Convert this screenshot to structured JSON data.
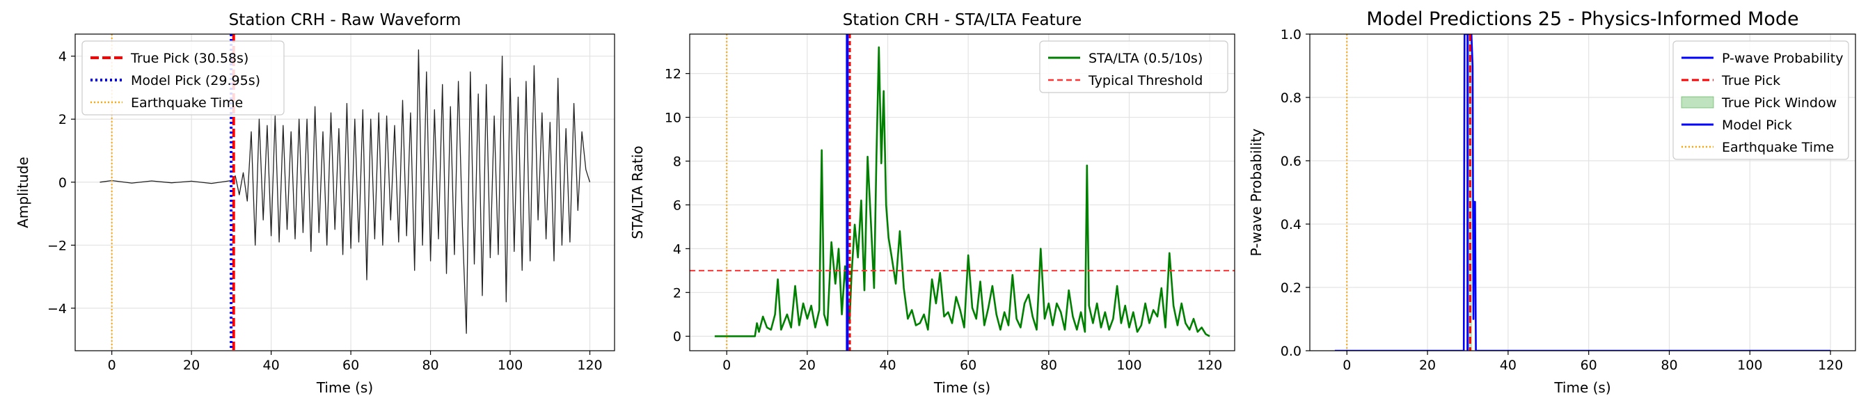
{
  "chart_data": [
    {
      "type": "line",
      "title": "Station CRH - Raw Waveform",
      "xlabel": "Time (s)",
      "ylabel": "Amplitude",
      "xlim": [
        -9.2,
        126.2
      ],
      "ylim": [
        -5.35,
        4.7
      ],
      "xticks": [
        0,
        20,
        40,
        60,
        80,
        100,
        120
      ],
      "xticklabels": [
        "0",
        "20",
        "40",
        "60",
        "80",
        "100",
        "120"
      ],
      "yticks": [
        -4,
        -2,
        0,
        2,
        4
      ],
      "yticklabels": [
        "−4",
        "−2",
        "0",
        "2",
        "4"
      ],
      "grid": true,
      "legend_position": "top-left",
      "series": [
        {
          "name": "",
          "role": "waveform",
          "color": "#222222",
          "x": [
            -3,
            0,
            5,
            10,
            15,
            20,
            25,
            30,
            31,
            32,
            33,
            34,
            35,
            36,
            37,
            38,
            39,
            40,
            41,
            42,
            43,
            44,
            45,
            46,
            47,
            48,
            49,
            50,
            51,
            52,
            53,
            54,
            55,
            56,
            57,
            58,
            59,
            60,
            61,
            62,
            63,
            64,
            65,
            66,
            67,
            68,
            69,
            70,
            71,
            72,
            73,
            74,
            75,
            76,
            77,
            78,
            79,
            80,
            81,
            82,
            83,
            84,
            85,
            86,
            87,
            88,
            89,
            90,
            91,
            92,
            93,
            94,
            95,
            96,
            97,
            98,
            99,
            100,
            101,
            102,
            103,
            104,
            105,
            106,
            107,
            108,
            109,
            110,
            111,
            112,
            113,
            114,
            115,
            116,
            117,
            118,
            119,
            120
          ],
          "y": [
            0.0,
            0.05,
            -0.03,
            0.04,
            -0.02,
            0.03,
            -0.04,
            0.05,
            0.2,
            -0.4,
            0.3,
            -0.6,
            1.6,
            -2.0,
            2.0,
            -1.2,
            1.8,
            -1.7,
            2.1,
            -1.9,
            1.8,
            -1.5,
            1.6,
            -1.8,
            2.0,
            -1.6,
            2.0,
            -2.2,
            2.4,
            -1.6,
            1.6,
            -2.0,
            2.2,
            -1.5,
            1.7,
            -2.3,
            2.5,
            -2.1,
            2.0,
            -1.9,
            2.3,
            -3.1,
            2.0,
            -1.8,
            2.2,
            -2.0,
            2.1,
            -1.2,
            1.8,
            -1.9,
            2.6,
            -1.7,
            2.2,
            -2.8,
            4.2,
            -2.0,
            3.5,
            -2.5,
            2.3,
            -1.8,
            3.1,
            -2.9,
            2.4,
            -2.3,
            3.2,
            -1.4,
            -4.8,
            3.5,
            -2.6,
            2.8,
            -3.6,
            3.1,
            -2.4,
            2.1,
            -2.3,
            4.0,
            -3.8,
            3.3,
            -2.2,
            2.7,
            -2.8,
            3.2,
            -2.5,
            3.7,
            -1.2,
            2.2,
            -1.8,
            1.9,
            -2.5,
            3.3,
            -2.0,
            1.7,
            -1.9,
            2.5,
            -0.9,
            1.6,
            0.4,
            0.0
          ]
        },
        {
          "name": "True Pick (30.58s)",
          "role": "vline",
          "x": 30.58,
          "color": "#ff0000",
          "dash": "12 5",
          "width": 4
        },
        {
          "name": "Model Pick (29.95s)",
          "role": "vline",
          "x": 29.95,
          "color": "#0000ff",
          "dash": "3 4",
          "width": 4
        },
        {
          "name": "Earthquake Time",
          "role": "vline",
          "x": 0,
          "color": "#ffa500",
          "dash": "2 3",
          "width": 2
        }
      ]
    },
    {
      "type": "line",
      "title": "Station CRH - STA/LTA Feature",
      "xlabel": "Time (s)",
      "ylabel": "STA/LTA Ratio",
      "xlim": [
        -9.2,
        126.2
      ],
      "ylim": [
        -0.66,
        13.8
      ],
      "xticks": [
        0,
        20,
        40,
        60,
        80,
        100,
        120
      ],
      "xticklabels": [
        "0",
        "20",
        "40",
        "60",
        "80",
        "100",
        "120"
      ],
      "yticks": [
        0,
        2,
        4,
        6,
        8,
        10,
        12
      ],
      "yticklabels": [
        "0",
        "2",
        "4",
        "6",
        "8",
        "10",
        "12"
      ],
      "grid": true,
      "legend_position": "top-right",
      "series": [
        {
          "name": "STA/LTA (0.5/10s)",
          "role": "line",
          "color": "#008000",
          "x": [
            -3,
            7,
            7.5,
            8,
            9,
            10,
            11,
            12,
            12.7,
            13.5,
            15,
            16,
            17,
            18,
            19,
            20,
            21,
            22,
            23,
            23.6,
            24.2,
            25,
            26,
            27,
            27.8,
            28.6,
            29.4,
            30.5,
            31,
            31.8,
            32.6,
            33.4,
            34.2,
            35,
            35.8,
            36.6,
            37.2,
            37.8,
            38.4,
            39,
            39.6,
            40.2,
            41,
            42,
            43,
            44,
            45,
            46,
            47,
            48,
            49,
            50,
            51,
            52,
            53,
            54,
            55,
            56,
            57,
            58,
            59,
            60,
            61,
            62,
            63,
            64,
            65,
            66,
            67,
            68,
            69,
            70,
            71,
            72,
            73,
            74,
            75,
            76,
            77,
            78,
            79,
            80,
            81,
            82,
            83,
            84,
            85,
            86,
            87,
            88,
            89,
            89.5,
            90,
            91,
            92,
            93,
            94,
            95,
            96,
            97,
            98,
            99,
            100,
            101,
            102,
            103,
            104,
            105,
            106,
            107,
            108,
            109,
            110,
            111,
            112,
            113,
            114,
            115,
            116,
            117,
            118,
            119,
            120
          ],
          "y": [
            0.0,
            0.0,
            0.6,
            0.2,
            0.9,
            0.4,
            0.3,
            1.0,
            2.6,
            0.3,
            1.0,
            0.4,
            2.3,
            0.5,
            1.5,
            0.8,
            1.4,
            0.4,
            1.2,
            8.5,
            1.0,
            0.5,
            4.3,
            2.4,
            4.0,
            1.0,
            3.2,
            0.6,
            2.8,
            5.1,
            3.6,
            6.2,
            2.1,
            8.2,
            5.3,
            2.2,
            8.2,
            13.2,
            7.9,
            11.2,
            6.0,
            4.5,
            3.6,
            2.4,
            4.8,
            2.2,
            0.8,
            1.2,
            0.5,
            0.6,
            1.0,
            0.3,
            2.6,
            1.5,
            2.9,
            0.9,
            1.1,
            0.6,
            1.8,
            1.2,
            0.4,
            3.7,
            1.3,
            0.8,
            2.5,
            0.5,
            1.3,
            2.3,
            1.0,
            0.3,
            1.1,
            0.5,
            2.8,
            0.8,
            0.4,
            1.5,
            1.9,
            0.9,
            0.3,
            4.0,
            0.8,
            1.5,
            0.5,
            1.5,
            1.1,
            0.3,
            2.1,
            0.9,
            0.3,
            1.1,
            0.2,
            7.8,
            1.4,
            0.6,
            1.5,
            0.4,
            1.1,
            0.3,
            0.8,
            2.3,
            0.6,
            1.4,
            0.4,
            1.1,
            0.2,
            0.5,
            1.5,
            0.6,
            1.2,
            0.9,
            2.2,
            0.4,
            3.8,
            1.4,
            0.5,
            1.5,
            0.6,
            0.3,
            0.8,
            0.2,
            0.4,
            0.1,
            0.0
          ]
        },
        {
          "name": "Typical Threshold",
          "role": "hline",
          "y": 3,
          "color": "#ff3333",
          "dash": "8 5",
          "width": 2
        },
        {
          "name": "",
          "role": "vline",
          "x": 29.95,
          "color": "#0000ff",
          "dash": "",
          "width": 4
        },
        {
          "name": "",
          "role": "vline",
          "x": 30.58,
          "color": "#ff0000",
          "dash": "6 4",
          "width": 3
        },
        {
          "name": "",
          "role": "vline",
          "x": 0,
          "color": "#ffa500",
          "dash": "2 3",
          "width": 2
        }
      ]
    },
    {
      "type": "line",
      "title": "Model Predictions 25 - Physics-Informed Mode",
      "xlabel": "Time (s)",
      "ylabel": "P-wave Probability",
      "xlim": [
        -9.2,
        126.2
      ],
      "ylim": [
        0.0,
        1.0
      ],
      "xticks": [
        0,
        20,
        40,
        60,
        80,
        100,
        120
      ],
      "xticklabels": [
        "0",
        "20",
        "40",
        "60",
        "80",
        "100",
        "120"
      ],
      "yticks": [
        0.0,
        0.2,
        0.4,
        0.6,
        0.8,
        1.0
      ],
      "yticklabels": [
        "0.0",
        "0.2",
        "0.4",
        "0.6",
        "0.8",
        "1.0"
      ],
      "grid": true,
      "legend_position": "top-right",
      "series": [
        {
          "name": "P-wave Probability",
          "role": "line",
          "color": "#0000ff",
          "x": [
            -3,
            29.0,
            29.2,
            29.5,
            30.0,
            30.5,
            30.9,
            31.2,
            31.4,
            31.6,
            31.8,
            32.0,
            32.2,
            32.4,
            120
          ],
          "y": [
            0.0,
            0.0,
            1.0,
            1.0,
            1.0,
            1.0,
            1.0,
            0.9,
            0.1,
            0.47,
            0.47,
            0.0,
            0.0,
            0.0,
            0.0
          ]
        },
        {
          "name": "True Pick",
          "role": "vline",
          "x": 30.58,
          "color": "#ff0000",
          "dash": "10 5",
          "width": 3
        },
        {
          "name": "True Pick Window",
          "role": "vspan",
          "x0": 30.08,
          "x1": 31.08,
          "color": "#2ca02c",
          "opacity": 0.3
        },
        {
          "name": "Model Pick",
          "role": "vline",
          "x": 29.95,
          "color": "#0000ff",
          "dash": "",
          "width": 3
        },
        {
          "name": "Earthquake Time",
          "role": "vline",
          "x": 0,
          "color": "#ffa500",
          "dash": "2 3",
          "width": 2
        }
      ]
    }
  ]
}
